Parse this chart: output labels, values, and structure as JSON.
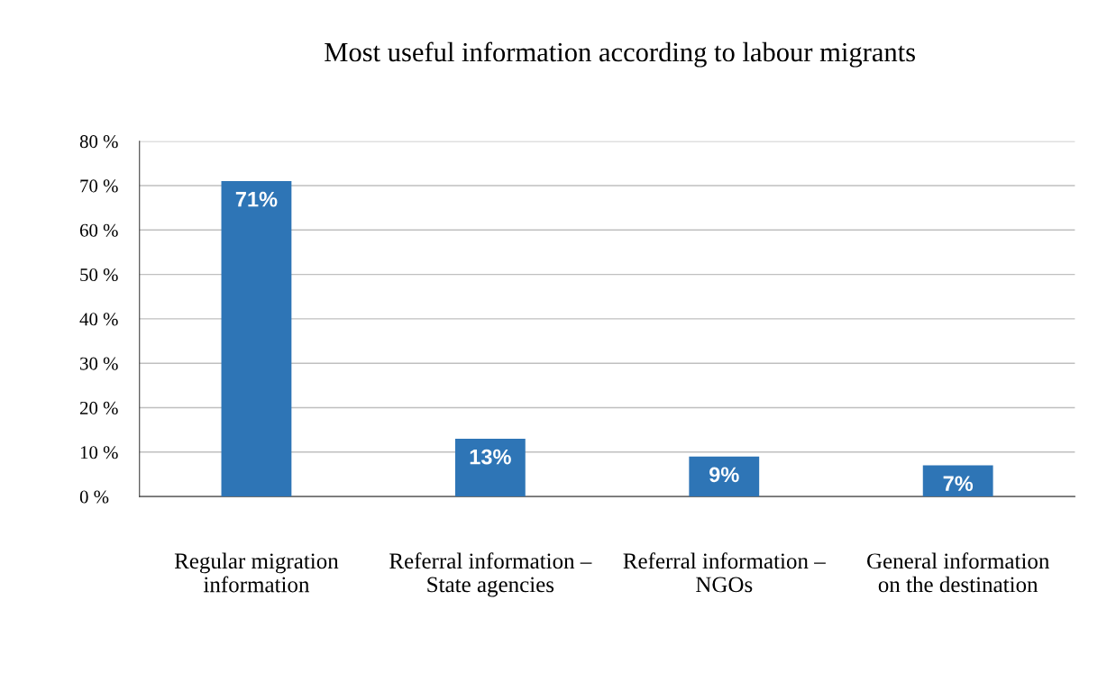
{
  "chart_data": {
    "type": "bar",
    "title": "Most useful information according to labour migrants",
    "categories": [
      "Regular migration\ninformation",
      "Referral information –\nState agencies",
      "Referral information –\nNGOs",
      "General information\non the destination"
    ],
    "values": [
      71,
      13,
      9,
      7
    ],
    "value_labels": [
      "71%",
      "13%",
      "9%",
      "7%"
    ],
    "color": "#2e75b6",
    "ylim": [
      0,
      80
    ],
    "yticks": [
      {
        "value": 0,
        "label": "0 %"
      },
      {
        "value": 10,
        "label": "10 %"
      },
      {
        "value": 20,
        "label": "20 %"
      },
      {
        "value": 30,
        "label": "30 %"
      },
      {
        "value": 40,
        "label": "40 %"
      },
      {
        "value": 50,
        "label": "50 %"
      },
      {
        "value": 60,
        "label": "60 %"
      },
      {
        "value": 70,
        "label": "70 %"
      },
      {
        "value": 80,
        "label": "80 %"
      }
    ],
    "grid": "y"
  }
}
